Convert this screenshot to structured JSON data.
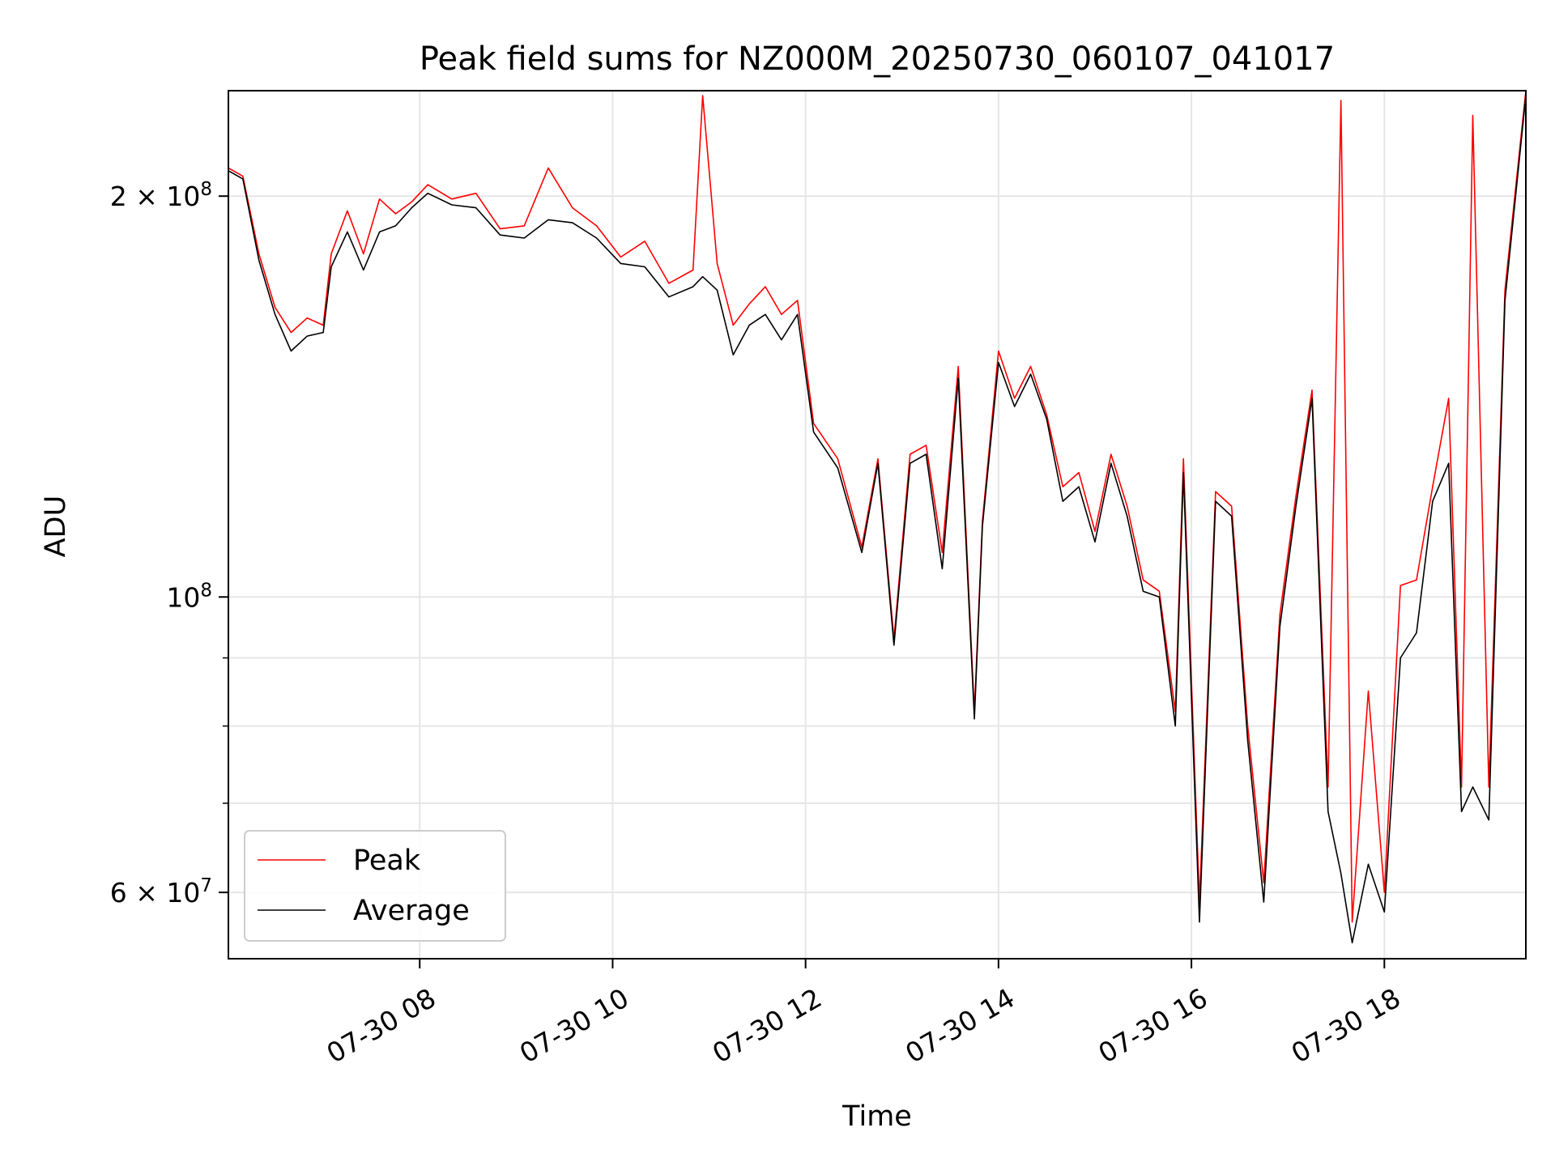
{
  "chart_data": {
    "type": "line",
    "title": "Peak field sums for NZ000M_20250730_060107_041017",
    "xlabel": "Time",
    "ylabel": "ADU",
    "y_scale": "log",
    "ylim": [
      53500000,
      240000000
    ],
    "xlim": [
      "2025-07-30 06:01",
      "2025-07-30 19:28"
    ],
    "x_ticks": [
      "2025-07-30 08:00",
      "2025-07-30 10:00",
      "2025-07-30 12:00",
      "2025-07-30 14:00",
      "2025-07-30 16:00",
      "2025-07-30 18:00"
    ],
    "x_tick_labels": [
      "07-30 08",
      "07-30 10",
      "07-30 12",
      "07-30 14",
      "07-30 16",
      "07-30 18"
    ],
    "y_major_ticks": [
      {
        "value": 60000000,
        "mantissa": "6",
        "exponent": "7"
      },
      {
        "value": 100000000,
        "mantissa": "",
        "exponent": "8"
      },
      {
        "value": 200000000,
        "mantissa": "2",
        "exponent": "8"
      }
    ],
    "y_minor_gridlines": [
      70000000,
      80000000,
      90000000
    ],
    "grid": true,
    "legend_position": "lower-left",
    "series": [
      {
        "name": "Peak",
        "color": "#ff0000",
        "x": [
          "2025-07-30 06:01",
          "2025-07-30 06:10",
          "2025-07-30 06:20",
          "2025-07-30 06:30",
          "2025-07-30 06:40",
          "2025-07-30 06:50",
          "2025-07-30 07:00",
          "2025-07-30 07:05",
          "2025-07-30 07:15",
          "2025-07-30 07:25",
          "2025-07-30 07:35",
          "2025-07-30 07:45",
          "2025-07-30 07:55",
          "2025-07-30 08:05",
          "2025-07-30 08:20",
          "2025-07-30 08:35",
          "2025-07-30 08:50",
          "2025-07-30 09:05",
          "2025-07-30 09:20",
          "2025-07-30 09:35",
          "2025-07-30 09:50",
          "2025-07-30 10:05",
          "2025-07-30 10:20",
          "2025-07-30 10:35",
          "2025-07-30 10:50",
          "2025-07-30 10:56",
          "2025-07-30 11:05",
          "2025-07-30 11:15",
          "2025-07-30 11:25",
          "2025-07-30 11:35",
          "2025-07-30 11:45",
          "2025-07-30 11:55",
          "2025-07-30 12:05",
          "2025-07-30 12:20",
          "2025-07-30 12:35",
          "2025-07-30 12:45",
          "2025-07-30 12:55",
          "2025-07-30 13:05",
          "2025-07-30 13:15",
          "2025-07-30 13:25",
          "2025-07-30 13:35",
          "2025-07-30 13:45",
          "2025-07-30 13:50",
          "2025-07-30 14:00",
          "2025-07-30 14:10",
          "2025-07-30 14:20",
          "2025-07-30 14:30",
          "2025-07-30 14:40",
          "2025-07-30 14:50",
          "2025-07-30 15:00",
          "2025-07-30 15:10",
          "2025-07-30 15:20",
          "2025-07-30 15:30",
          "2025-07-30 15:40",
          "2025-07-30 15:50",
          "2025-07-30 15:55",
          "2025-07-30 16:05",
          "2025-07-30 16:15",
          "2025-07-30 16:25",
          "2025-07-30 16:35",
          "2025-07-30 16:45",
          "2025-07-30 16:55",
          "2025-07-30 17:05",
          "2025-07-30 17:15",
          "2025-07-30 17:25",
          "2025-07-30 17:33",
          "2025-07-30 17:40",
          "2025-07-30 17:50",
          "2025-07-30 18:00",
          "2025-07-30 18:10",
          "2025-07-30 18:20",
          "2025-07-30 18:30",
          "2025-07-30 18:40",
          "2025-07-30 18:48",
          "2025-07-30 18:55",
          "2025-07-30 19:05",
          "2025-07-30 19:15",
          "2025-07-30 19:28"
        ],
        "y": [
          210000000,
          207000000,
          181000000,
          165000000,
          158000000,
          162000000,
          160000000,
          181000000,
          195000000,
          181000000,
          199000000,
          194000000,
          198000000,
          204000000,
          199000000,
          201000000,
          189000000,
          190000000,
          210000000,
          196000000,
          190000000,
          180000000,
          185000000,
          172000000,
          176000000,
          238000000,
          178000000,
          160000000,
          166000000,
          171000000,
          163000000,
          167000000,
          135000000,
          127000000,
          109000000,
          127000000,
          93000000,
          128000000,
          130000000,
          108000000,
          149000000,
          82000000,
          114000000,
          153000000,
          141000000,
          149000000,
          137000000,
          121000000,
          124000000,
          112000000,
          128000000,
          117000000,
          103000000,
          101000000,
          82000000,
          127000000,
          59000000,
          120000000,
          117000000,
          80000000,
          61000000,
          97000000,
          119000000,
          143000000,
          72000000,
          236000000,
          57000000,
          85000000,
          60000000,
          102000000,
          103000000,
          121000000,
          141000000,
          72000000,
          230000000,
          72000000,
          170000000,
          240000000
        ]
      },
      {
        "name": "Average",
        "color": "#000000",
        "x": [
          "2025-07-30 06:01",
          "2025-07-30 06:10",
          "2025-07-30 06:20",
          "2025-07-30 06:30",
          "2025-07-30 06:40",
          "2025-07-30 06:50",
          "2025-07-30 07:00",
          "2025-07-30 07:05",
          "2025-07-30 07:15",
          "2025-07-30 07:25",
          "2025-07-30 07:35",
          "2025-07-30 07:45",
          "2025-07-30 07:55",
          "2025-07-30 08:05",
          "2025-07-30 08:20",
          "2025-07-30 08:35",
          "2025-07-30 08:50",
          "2025-07-30 09:05",
          "2025-07-30 09:20",
          "2025-07-30 09:35",
          "2025-07-30 09:50",
          "2025-07-30 10:05",
          "2025-07-30 10:20",
          "2025-07-30 10:35",
          "2025-07-30 10:50",
          "2025-07-30 10:56",
          "2025-07-30 11:05",
          "2025-07-30 11:15",
          "2025-07-30 11:25",
          "2025-07-30 11:35",
          "2025-07-30 11:45",
          "2025-07-30 11:55",
          "2025-07-30 12:05",
          "2025-07-30 12:20",
          "2025-07-30 12:35",
          "2025-07-30 12:45",
          "2025-07-30 12:55",
          "2025-07-30 13:05",
          "2025-07-30 13:15",
          "2025-07-30 13:25",
          "2025-07-30 13:35",
          "2025-07-30 13:45",
          "2025-07-30 13:50",
          "2025-07-30 14:00",
          "2025-07-30 14:10",
          "2025-07-30 14:20",
          "2025-07-30 14:30",
          "2025-07-30 14:40",
          "2025-07-30 14:50",
          "2025-07-30 15:00",
          "2025-07-30 15:10",
          "2025-07-30 15:20",
          "2025-07-30 15:30",
          "2025-07-30 15:40",
          "2025-07-30 15:50",
          "2025-07-30 15:55",
          "2025-07-30 16:05",
          "2025-07-30 16:15",
          "2025-07-30 16:25",
          "2025-07-30 16:35",
          "2025-07-30 16:45",
          "2025-07-30 16:55",
          "2025-07-30 17:05",
          "2025-07-30 17:15",
          "2025-07-30 17:25",
          "2025-07-30 17:33",
          "2025-07-30 17:40",
          "2025-07-30 17:50",
          "2025-07-30 18:00",
          "2025-07-30 18:10",
          "2025-07-30 18:20",
          "2025-07-30 18:30",
          "2025-07-30 18:40",
          "2025-07-30 18:48",
          "2025-07-30 18:55",
          "2025-07-30 19:05",
          "2025-07-30 19:15",
          "2025-07-30 19:28"
        ],
        "y": [
          209000000,
          206000000,
          179000000,
          163000000,
          153000000,
          157000000,
          158000000,
          177000000,
          188000000,
          176000000,
          188000000,
          190000000,
          196000000,
          201000000,
          197000000,
          196000000,
          187000000,
          186000000,
          192000000,
          191000000,
          186000000,
          178000000,
          177000000,
          168000000,
          171000000,
          174000000,
          170000000,
          152000000,
          160000000,
          163000000,
          156000000,
          163000000,
          133000000,
          125000000,
          108000000,
          126000000,
          92000000,
          126000000,
          128000000,
          105000000,
          146000000,
          81000000,
          113000000,
          150000000,
          139000000,
          147000000,
          136000000,
          118000000,
          121000000,
          110000000,
          126000000,
          115000000,
          101000000,
          100000000,
          80000000,
          124000000,
          57000000,
          118000000,
          115000000,
          78000000,
          59000000,
          95000000,
          117000000,
          141000000,
          69000000,
          62000000,
          55000000,
          63000000,
          58000000,
          90000000,
          94000000,
          118000000,
          126000000,
          69000000,
          72000000,
          68000000,
          167000000,
          238000000
        ]
      }
    ]
  }
}
